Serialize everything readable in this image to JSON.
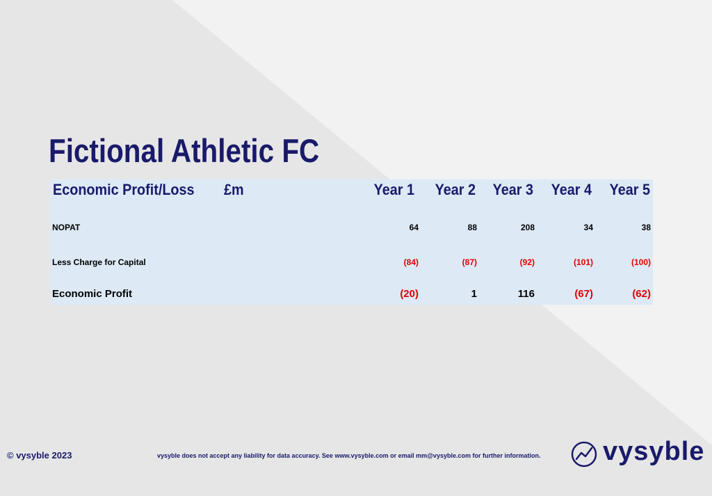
{
  "title": "Fictional Athletic FC",
  "table": {
    "header": {
      "label": "Economic Profit/Loss",
      "unit": "£m",
      "years": [
        "Year 1",
        "Year 2",
        "Year 3",
        "Year 4",
        "Year 5"
      ]
    },
    "rows": [
      {
        "label": "NOPAT",
        "values": [
          "64",
          "88",
          "208",
          "34",
          "38"
        ]
      },
      {
        "label": "Less Charge for Capital",
        "values": [
          "(84)",
          "(87)",
          "(92)",
          "(101)",
          "(100)"
        ]
      },
      {
        "label": "Economic Profit",
        "values": [
          "(20)",
          "1",
          "116",
          "(67)",
          "(62)"
        ]
      }
    ]
  },
  "footer": {
    "copyright": "© vysyble 2023",
    "disclaimer": "vysyble does not accept any liability for data accuracy. See www.vysyble.com or email mm@vysyble.com for further information.",
    "logo_text": "vysyble"
  },
  "colors": {
    "navy": "#1a1a6b",
    "negative": "#e00000",
    "panel": "#dde9f5"
  }
}
